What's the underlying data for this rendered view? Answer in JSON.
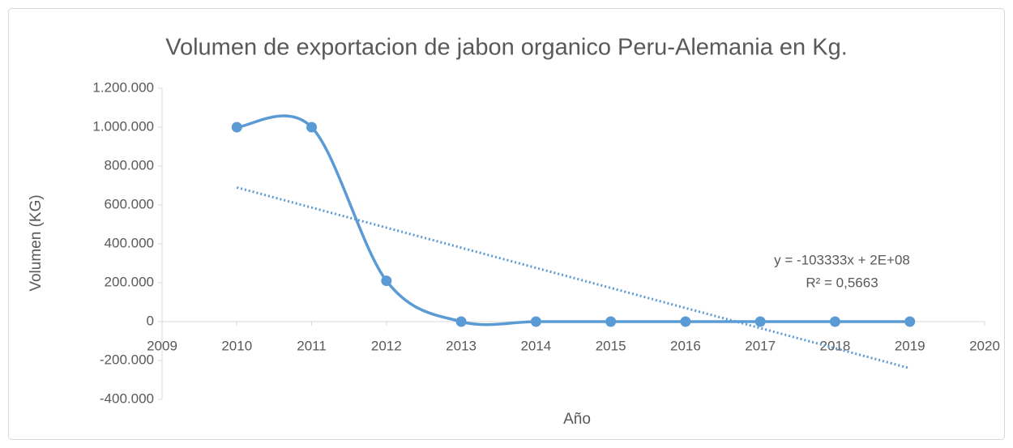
{
  "chart_data": {
    "type": "scatter",
    "title": "Volumen de exportacion de jabon organico Peru-Alemania en Kg.",
    "x_label": "Año",
    "y_label": "Volumen (KG)",
    "x": [
      2010,
      2011,
      2012,
      2013,
      2014,
      2015,
      2016,
      2017,
      2018,
      2019
    ],
    "series": [
      {
        "color": "#5b9bd5",
        "values": [
          1000000,
          1000000,
          210000,
          0,
          0,
          0,
          0,
          0,
          0,
          0
        ]
      }
    ],
    "trendline": {
      "x": [
        2010,
        2019
      ],
      "values": [
        690000,
        -240000
      ],
      "color": "#5b9bd5"
    },
    "annotations": [
      "y = -103333x + 2E+08",
      "R² = 0,5663"
    ],
    "xlim": [
      2009,
      2020
    ],
    "xticks": [
      2009,
      2010,
      2011,
      2012,
      2013,
      2014,
      2015,
      2016,
      2017,
      2018,
      2019,
      2020
    ],
    "ylim": [
      -400000,
      1200000
    ],
    "yticks": [
      {
        "value": -400000,
        "label": "-400.000"
      },
      {
        "value": -200000,
        "label": "-200.000"
      },
      0,
      {
        "value": 200000,
        "label": "200.000"
      },
      {
        "value": 400000,
        "label": "400.000"
      },
      {
        "value": 600000,
        "label": "600.000"
      },
      {
        "value": 800000,
        "label": "800.000"
      },
      {
        "value": 1000000,
        "label": "1.000.000"
      },
      {
        "value": 1200000,
        "label": "1.200.000"
      }
    ],
    "grid": false,
    "smooth": true
  }
}
